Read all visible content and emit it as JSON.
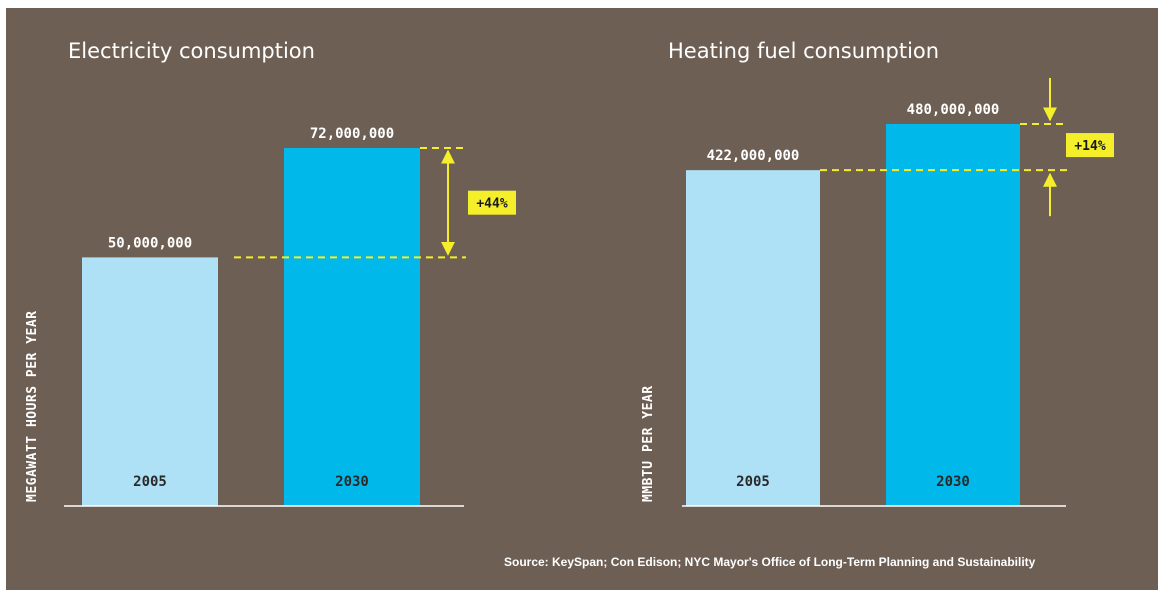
{
  "colors": {
    "background": "#6e5f55",
    "bar_2005": "#aee0f6",
    "bar_2030": "#00b8ea",
    "highlight": "#f4ef2a",
    "axis": "#ffffff"
  },
  "source": "Source: KeySpan; Con Edison; NYC Mayor's Office of Long-Term Planning and Sustainability",
  "chart_data": [
    {
      "type": "bar",
      "title": "Electricity consumption",
      "ylabel": "MEGAWATT HOURS PER YEAR",
      "categories": [
        "2005",
        "2030"
      ],
      "values": [
        50000000,
        72000000
      ],
      "value_labels": [
        "50,000,000",
        "72,000,000"
      ],
      "change_label": "+44%",
      "ylim": [
        0,
        72000000
      ],
      "grid": false
    },
    {
      "type": "bar",
      "title": "Heating fuel consumption",
      "ylabel": "MMBTU PER YEAR",
      "categories": [
        "2005",
        "2030"
      ],
      "values": [
        422000000,
        480000000
      ],
      "value_labels": [
        "422,000,000",
        "480,000,000"
      ],
      "change_label": "+14%",
      "ylim": [
        0,
        480000000
      ],
      "grid": false
    }
  ]
}
